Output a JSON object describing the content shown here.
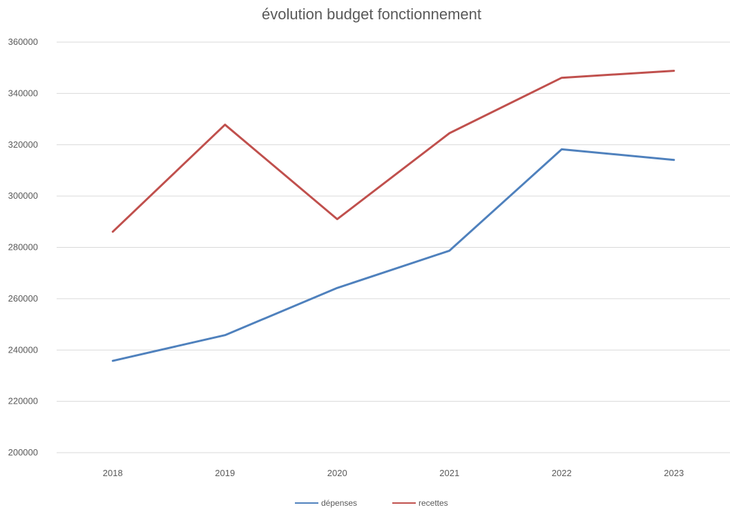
{
  "chart_data": {
    "type": "line",
    "title": "évolution budget fonctionnement",
    "xlabel": "",
    "ylabel": "",
    "categories": [
      "2018",
      "2019",
      "2020",
      "2021",
      "2022",
      "2023"
    ],
    "ylim": [
      200000,
      360000
    ],
    "yticks": [
      "200000",
      "220000",
      "240000",
      "260000",
      "280000",
      "300000",
      "320000",
      "340000",
      "360000"
    ],
    "grid": true,
    "legend_position": "bottom",
    "series": [
      {
        "name": "dépenses",
        "color": "#4f81bd",
        "values": [
          235800,
          245800,
          264200,
          278700,
          318200,
          314100
        ]
      },
      {
        "name": "recettes",
        "color": "#c0504d",
        "values": [
          286100,
          327800,
          291000,
          324500,
          346100,
          348800
        ]
      }
    ]
  }
}
